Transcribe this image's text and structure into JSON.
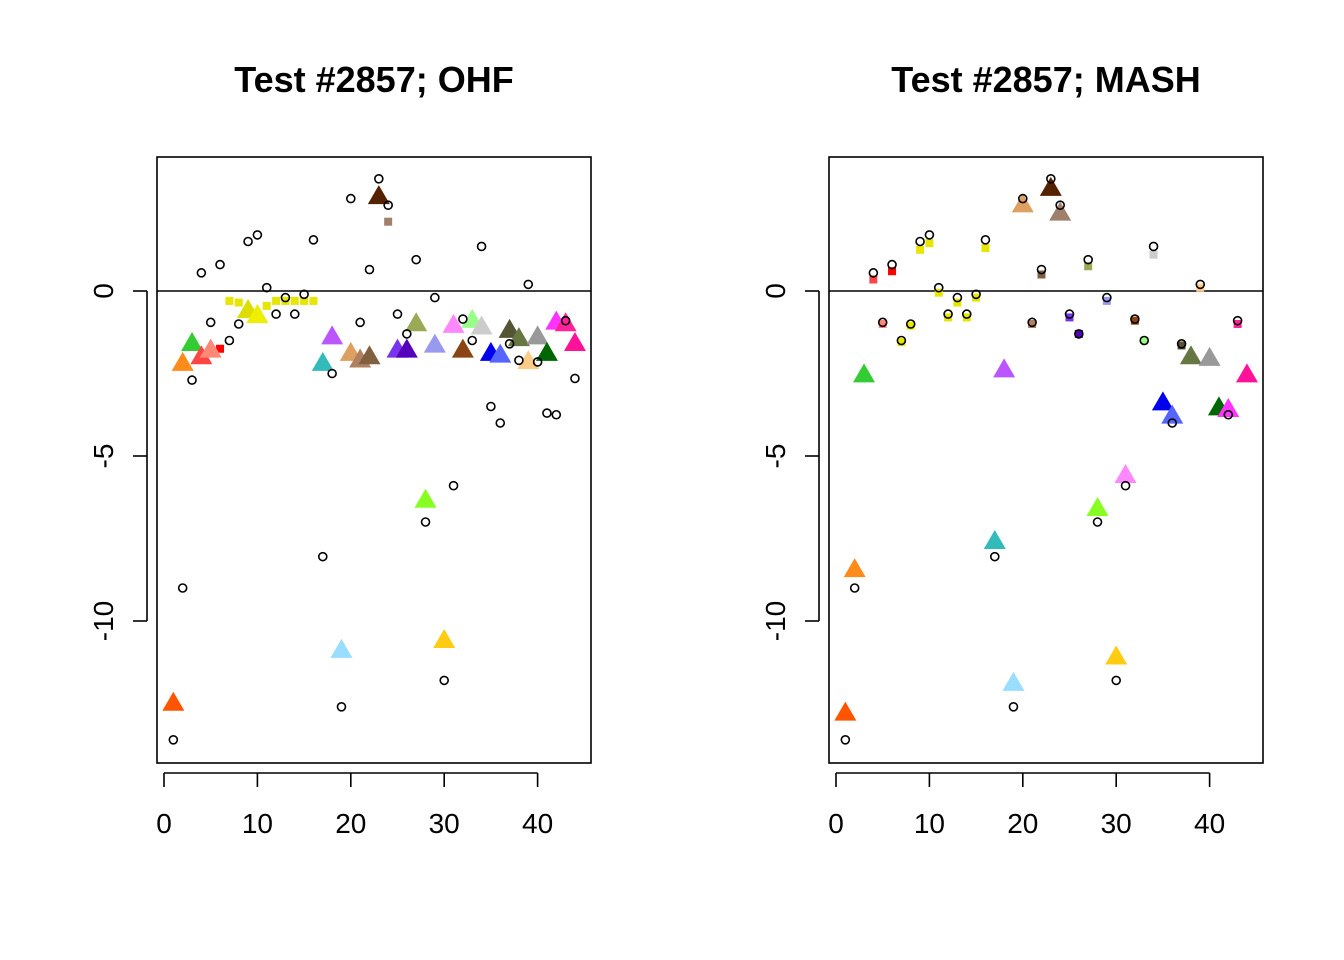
{
  "chart_data": [
    {
      "type": "scatter",
      "title": "Test #2857; OHF",
      "xlabel": "",
      "ylabel": "",
      "xlim": [
        0,
        45
      ],
      "ylim": [
        -14,
        4
      ],
      "x_ticks": [
        "0",
        "10",
        "20",
        "30",
        "40"
      ],
      "y_ticks": [
        "0",
        "-5",
        "-10"
      ],
      "reference_line_y": 0,
      "series": [
        {
          "marker": "circle",
          "color": "#000000",
          "points": [
            [
              1,
              -13.6
            ],
            [
              2,
              -9.0
            ],
            [
              3,
              -2.7
            ],
            [
              4,
              0.55
            ],
            [
              5,
              -0.95
            ],
            [
              6,
              0.8
            ],
            [
              7,
              -1.5
            ],
            [
              8,
              -1.0
            ],
            [
              9,
              1.5
            ],
            [
              10,
              1.7
            ],
            [
              11,
              0.1
            ],
            [
              12,
              -0.7
            ],
            [
              13,
              -0.2
            ],
            [
              14,
              -0.7
            ],
            [
              15,
              -0.1
            ],
            [
              16,
              1.55
            ],
            [
              17,
              -8.05
            ],
            [
              18,
              -2.5
            ],
            [
              19,
              -12.6
            ],
            [
              20,
              2.8
            ],
            [
              21,
              -0.95
            ],
            [
              22,
              0.65
            ],
            [
              23,
              3.4
            ],
            [
              24,
              2.6
            ],
            [
              25,
              -0.7
            ],
            [
              26,
              -1.3
            ],
            [
              27,
              0.95
            ],
            [
              28,
              -7.0
            ],
            [
              29,
              -0.2
            ],
            [
              30,
              -11.8
            ],
            [
              31,
              -5.9
            ],
            [
              32,
              -0.85
            ],
            [
              33,
              -1.5
            ],
            [
              34,
              1.35
            ],
            [
              35,
              -3.5
            ],
            [
              36,
              -4.0
            ],
            [
              37,
              -1.6
            ],
            [
              38,
              -2.1
            ],
            [
              39,
              0.2
            ],
            [
              40,
              -2.15
            ],
            [
              41,
              -3.7
            ],
            [
              42,
              -3.75
            ],
            [
              43,
              -0.9
            ],
            [
              44,
              -2.65
            ]
          ]
        },
        {
          "marker": "square",
          "points": [
            [
              6,
              -1.75,
              "#ff0000"
            ],
            [
              7,
              -0.3,
              "#e6e600"
            ],
            [
              8,
              -0.35,
              "#e6e600"
            ],
            [
              11,
              -0.45,
              "#e6e600"
            ],
            [
              12,
              -0.3,
              "#e6e600"
            ],
            [
              13,
              -0.3,
              "#e6e600"
            ],
            [
              14,
              -0.3,
              "#e6e600"
            ],
            [
              15,
              -0.3,
              "#e6e600"
            ],
            [
              16,
              -0.3,
              "#e6e600"
            ],
            [
              24,
              2.1,
              "#a0806a"
            ]
          ]
        },
        {
          "marker": "triangle",
          "points": [
            [
              1,
              -12.5,
              "#ff5500"
            ],
            [
              2,
              -2.2,
              "#ff8c1a"
            ],
            [
              3,
              -1.6,
              "#33cc33"
            ],
            [
              4,
              -2.0,
              "#ff4444"
            ],
            [
              5,
              -1.8,
              "#ff8877"
            ],
            [
              9,
              -0.6,
              "#dddd00"
            ],
            [
              10,
              -0.75,
              "#eeee00"
            ],
            [
              17,
              -2.2,
              "#33bbbb"
            ],
            [
              18,
              -1.4,
              "#bb55ff"
            ],
            [
              19,
              -10.9,
              "#99ddff"
            ],
            [
              20,
              -1.9,
              "#dda060"
            ],
            [
              21,
              -2.1,
              "#b08060"
            ],
            [
              22,
              -2.0,
              "#806040"
            ],
            [
              23,
              2.85,
              "#552200"
            ],
            [
              25,
              -1.8,
              "#7733ee"
            ],
            [
              26,
              -1.8,
              "#5500bb"
            ],
            [
              27,
              -1.0,
              "#99aa55"
            ],
            [
              28,
              -6.35,
              "#88ff22"
            ],
            [
              29,
              -1.65,
              "#9999ee"
            ],
            [
              30,
              -10.6,
              "#ffcc11"
            ],
            [
              31,
              -1.05,
              "#ff88ff"
            ],
            [
              32,
              -1.8,
              "#8b4513"
            ],
            [
              33,
              -0.9,
              "#99ff88"
            ],
            [
              34,
              -1.1,
              "#cccccc"
            ],
            [
              35,
              -1.9,
              "#0000ee"
            ],
            [
              36,
              -1.95,
              "#5566ff"
            ],
            [
              37,
              -1.2,
              "#555533"
            ],
            [
              38,
              -1.45,
              "#667744"
            ],
            [
              39,
              -2.15,
              "#ffcc88"
            ],
            [
              40,
              -1.4,
              "#999999"
            ],
            [
              41,
              -1.9,
              "#006600"
            ],
            [
              42,
              -0.95,
              "#ff33ff"
            ],
            [
              43,
              -1.0,
              "#ff2299"
            ],
            [
              44,
              -1.6,
              "#ff1199"
            ]
          ]
        }
      ]
    },
    {
      "type": "scatter",
      "title": "Test #2857; MASH",
      "xlabel": "",
      "ylabel": "",
      "xlim": [
        0,
        45
      ],
      "ylim": [
        -14,
        4
      ],
      "x_ticks": [
        "0",
        "10",
        "20",
        "30",
        "40"
      ],
      "y_ticks": [
        "0",
        "-5",
        "-10"
      ],
      "reference_line_y": 0,
      "series": [
        {
          "marker": "circle",
          "color": "#000000",
          "points": [
            [
              1,
              -13.6
            ],
            [
              2,
              -9.0
            ],
            [
              4,
              0.55
            ],
            [
              5,
              -0.95
            ],
            [
              6,
              0.8
            ],
            [
              7,
              -1.5
            ],
            [
              8,
              -1.0
            ],
            [
              9,
              1.5
            ],
            [
              10,
              1.7
            ],
            [
              11,
              0.1
            ],
            [
              12,
              -0.7
            ],
            [
              13,
              -0.2
            ],
            [
              14,
              -0.7
            ],
            [
              15,
              -0.1
            ],
            [
              16,
              1.55
            ],
            [
              17,
              -8.05
            ],
            [
              19,
              -12.6
            ],
            [
              20,
              2.8
            ],
            [
              21,
              -0.95
            ],
            [
              22,
              0.65
            ],
            [
              23,
              3.4
            ],
            [
              24,
              2.6
            ],
            [
              25,
              -0.7
            ],
            [
              26,
              -1.3
            ],
            [
              27,
              0.95
            ],
            [
              28,
              -7.0
            ],
            [
              29,
              -0.2
            ],
            [
              30,
              -11.8
            ],
            [
              31,
              -5.9
            ],
            [
              32,
              -0.85
            ],
            [
              33,
              -1.5
            ],
            [
              34,
              1.35
            ],
            [
              36,
              -4.0
            ],
            [
              37,
              -1.6
            ],
            [
              39,
              0.2
            ],
            [
              42,
              -3.75
            ],
            [
              43,
              -0.9
            ]
          ]
        },
        {
          "marker": "square",
          "points": [
            [
              4,
              0.35,
              "#ff4444"
            ],
            [
              5,
              -1.0,
              "#ff8877"
            ],
            [
              6,
              0.6,
              "#ff0000"
            ],
            [
              7,
              -1.55,
              "#e6e600"
            ],
            [
              8,
              -1.05,
              "#e6e600"
            ],
            [
              9,
              1.25,
              "#e6e600"
            ],
            [
              10,
              1.45,
              "#e6e600"
            ],
            [
              11,
              -0.05,
              "#e6e600"
            ],
            [
              12,
              -0.8,
              "#e6e600"
            ],
            [
              13,
              -0.35,
              "#e6e600"
            ],
            [
              14,
              -0.8,
              "#e6e600"
            ],
            [
              15,
              -0.2,
              "#e6e600"
            ],
            [
              16,
              1.3,
              "#e6e600"
            ],
            [
              21,
              -1.0,
              "#b08060"
            ],
            [
              22,
              0.5,
              "#806040"
            ],
            [
              25,
              -0.8,
              "#7733ee"
            ],
            [
              26,
              -1.3,
              "#5500bb"
            ],
            [
              27,
              0.75,
              "#99aa55"
            ],
            [
              29,
              -0.3,
              "#9999ee"
            ],
            [
              32,
              -0.9,
              "#8b4513"
            ],
            [
              33,
              -1.5,
              "#99ff88"
            ],
            [
              34,
              1.1,
              "#cccccc"
            ],
            [
              37,
              -1.65,
              "#555533"
            ],
            [
              39,
              0.1,
              "#ffcc88"
            ],
            [
              43,
              -1.0,
              "#ff2299"
            ]
          ]
        },
        {
          "marker": "triangle",
          "points": [
            [
              1,
              -12.8,
              "#ff5500"
            ],
            [
              2,
              -8.45,
              "#ff8c1a"
            ],
            [
              3,
              -2.55,
              "#33cc33"
            ],
            [
              17,
              -7.6,
              "#33bbbb"
            ],
            [
              18,
              -2.4,
              "#bb55ff"
            ],
            [
              19,
              -11.9,
              "#99ddff"
            ],
            [
              20,
              2.6,
              "#dda060"
            ],
            [
              23,
              3.1,
              "#552200"
            ],
            [
              24,
              2.35,
              "#a0806a"
            ],
            [
              28,
              -6.6,
              "#88ff22"
            ],
            [
              30,
              -11.1,
              "#ffcc11"
            ],
            [
              31,
              -5.6,
              "#ff88ff"
            ],
            [
              35,
              -3.4,
              "#0000ee"
            ],
            [
              36,
              -3.8,
              "#5566ff"
            ],
            [
              38,
              -2.0,
              "#667744"
            ],
            [
              40,
              -2.05,
              "#999999"
            ],
            [
              41,
              -3.55,
              "#006600"
            ],
            [
              42,
              -3.6,
              "#ff33ff"
            ],
            [
              44,
              -2.55,
              "#ff1199"
            ]
          ]
        }
      ]
    }
  ]
}
